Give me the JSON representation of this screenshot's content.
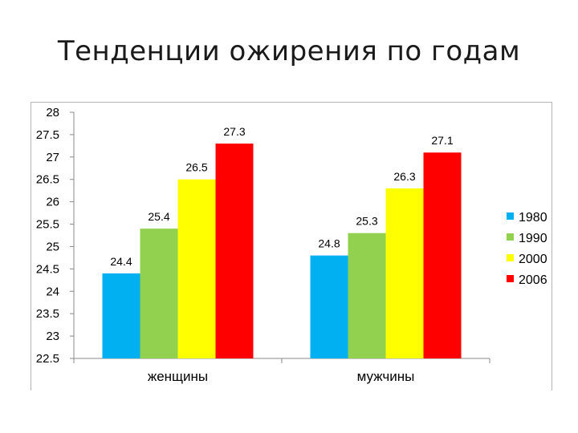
{
  "slide": {
    "title": "Тенденции ожирения по годам"
  },
  "chart_data": {
    "type": "bar",
    "categories": [
      "женщины",
      "мужчины"
    ],
    "series": [
      {
        "name": "1980",
        "color": "#00b0f0",
        "values": [
          24.4,
          24.8
        ]
      },
      {
        "name": "1990",
        "color": "#92d050",
        "values": [
          25.4,
          25.3
        ]
      },
      {
        "name": "2000",
        "color": "#ffff00",
        "values": [
          26.5,
          26.3
        ]
      },
      {
        "name": "2006",
        "color": "#ff0000",
        "values": [
          27.3,
          27.1
        ]
      }
    ],
    "title": "",
    "xlabel": "",
    "ylabel": "",
    "ylim": [
      22.5,
      28
    ],
    "yticks": [
      "22.5",
      "23",
      "23.5",
      "24",
      "24.5",
      "25",
      "25.5",
      "26",
      "26.5",
      "27",
      "27.5",
      "28"
    ],
    "grid": false,
    "legend_position": "right"
  }
}
